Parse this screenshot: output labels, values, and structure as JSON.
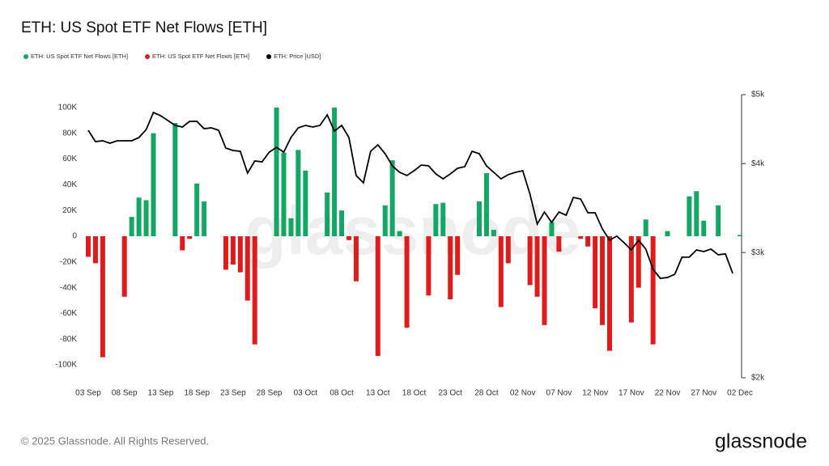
{
  "chart_data": {
    "type": "bar",
    "title": "ETH: US Spot ETF Net Flows [ETH]",
    "categories": [
      "03 Sep",
      null,
      null,
      null,
      null,
      "08 Sep",
      null,
      null,
      null,
      null,
      "13 Sep",
      null,
      null,
      null,
      null,
      "18 Sep",
      null,
      null,
      null,
      null,
      "23 Sep",
      null,
      null,
      null,
      null,
      "28 Sep",
      null,
      null,
      null,
      null,
      "03 Oct",
      null,
      null,
      null,
      null,
      "08 Oct",
      null,
      null,
      null,
      null,
      "13 Oct",
      null,
      null,
      null,
      null,
      "18 Oct",
      null,
      null,
      null,
      null,
      "23 Oct",
      null,
      null,
      null,
      null,
      "28 Oct",
      null,
      null,
      null,
      null,
      "02 Nov",
      null,
      null,
      null,
      null,
      "07 Nov",
      null,
      null,
      null,
      null,
      "12 Nov",
      null,
      null,
      null,
      null,
      "17 Nov",
      null,
      null,
      null,
      null,
      "22 Nov",
      null,
      null,
      null,
      null,
      "27 Nov",
      null,
      null,
      null,
      null,
      "02 Dec"
    ],
    "series": [
      {
        "name": "ETH: US Spot ETF Net Flows [ETH]",
        "color": "#14a664",
        "values": [
          null,
          null,
          null,
          null,
          null,
          null,
          15000,
          30000,
          28000,
          80000,
          null,
          null,
          88000,
          null,
          null,
          41000,
          27000,
          null,
          null,
          null,
          null,
          null,
          null,
          null,
          null,
          null,
          100000,
          65000,
          14000,
          67000,
          51000,
          null,
          null,
          34000,
          100000,
          20000,
          null,
          null,
          null,
          null,
          null,
          24000,
          59000,
          4000,
          null,
          null,
          null,
          null,
          25000,
          26000,
          null,
          null,
          null,
          null,
          27000,
          49000,
          5000,
          null,
          null,
          null,
          null,
          null,
          null,
          null,
          11000,
          null,
          null,
          null,
          null,
          null,
          null,
          null,
          null,
          null,
          null,
          null,
          null,
          13000,
          null,
          null,
          4000,
          null,
          null,
          31000,
          35000,
          12000,
          null,
          24000,
          null,
          null,
          1000
        ]
      },
      {
        "name": "ETH: US Spot ETF Net Flows [ETH]",
        "color": "#e01b1b",
        "values": [
          -16000,
          -21000,
          -94000,
          null,
          null,
          -47000,
          null,
          null,
          null,
          null,
          null,
          null,
          null,
          -11000,
          -2000,
          null,
          null,
          null,
          null,
          -26000,
          -22000,
          -28000,
          -50000,
          -84000,
          null,
          null,
          null,
          null,
          null,
          null,
          null,
          null,
          null,
          null,
          null,
          null,
          -3000,
          -35000,
          null,
          null,
          -93000,
          null,
          null,
          null,
          -71000,
          null,
          null,
          -46000,
          null,
          null,
          -49000,
          -30000,
          null,
          null,
          null,
          null,
          null,
          -55000,
          -21000,
          null,
          null,
          -38000,
          -47000,
          -69000,
          null,
          -12000,
          null,
          null,
          -2000,
          -8000,
          -56000,
          -69000,
          -89000,
          null,
          null,
          -67000,
          -40000,
          null,
          -84000,
          null,
          null,
          null,
          null,
          null,
          null,
          null,
          null,
          null,
          null,
          null,
          null
        ]
      },
      {
        "name": "ETH: Price [USD]",
        "color": "#000000",
        "type": "line",
        "axis": "y2",
        "values": [
          4456,
          4296,
          4307,
          4273,
          4307,
          4307,
          4307,
          4352,
          4467,
          4720,
          4671,
          4598,
          4526,
          4503,
          4586,
          4586,
          4479,
          4491,
          4456,
          4207,
          4174,
          4163,
          3879,
          4034,
          4024,
          4152,
          4217,
          4152,
          4352,
          4491,
          4526,
          4503,
          4526,
          4683,
          4444,
          4526,
          4352,
          3849,
          3759,
          4163,
          4251,
          4130,
          3971,
          3889,
          3849,
          3909,
          3982,
          3971,
          3869,
          3808,
          3869,
          3940,
          3961,
          4163,
          4130,
          3971,
          3889,
          3808,
          3859,
          3889,
          3909,
          3624,
          3289,
          3420,
          3307,
          3420,
          3385,
          3586,
          3567,
          3412,
          3412,
          3238,
          3122,
          3163,
          3097,
          3025,
          3122,
          3033,
          2841,
          2760,
          2767,
          2796,
          2955,
          2955,
          3025,
          3009,
          3033,
          2978,
          2986,
          2804,
          null
        ]
      }
    ],
    "ylim": [
      -110000,
      110000
    ],
    "yticks": [
      {
        "value": 100000,
        "label": "100K"
      },
      {
        "value": 80000,
        "label": "80K"
      },
      {
        "value": 60000,
        "label": "60K"
      },
      {
        "value": 40000,
        "label": "40K"
      },
      {
        "value": 20000,
        "label": "20K"
      },
      0,
      {
        "value": -20000,
        "label": "-20K"
      },
      {
        "value": -40000,
        "label": "-40K"
      },
      {
        "value": -60000,
        "label": "-60K"
      },
      {
        "value": -80000,
        "label": "-80K"
      },
      {
        "value": -100000,
        "label": "-100K"
      }
    ],
    "y2lim": [
      2000,
      5000
    ],
    "y2scale": "log",
    "y2ticks": [
      {
        "value": 5000,
        "label": "$5k"
      },
      {
        "value": 4000,
        "label": "$4k"
      },
      {
        "value": 3000,
        "label": "$3k"
      },
      {
        "value": 2000,
        "label": "$2k"
      }
    ],
    "grid": false,
    "legend": "top-left"
  },
  "watermark": "glassnode",
  "footer": "© 2025 Glassnode. All Rights Reserved.",
  "logo": "glassnode"
}
